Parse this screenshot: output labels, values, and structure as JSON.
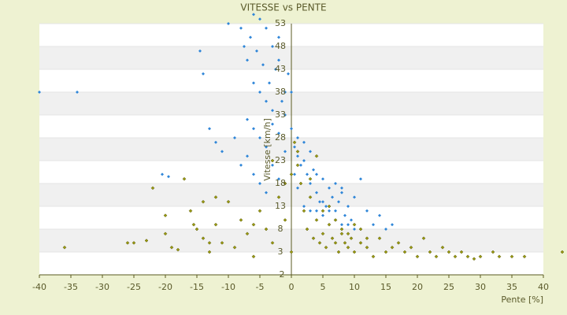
{
  "chart_data": {
    "type": "scatter",
    "title": "VITESSE vs PENTE",
    "x_label": "Pente [%]",
    "y_label": "Vitesse [km/h]",
    "xlim": [
      -40,
      40
    ],
    "ylim": [
      -2,
      53
    ],
    "xticks": [
      -40,
      -35,
      -30,
      -25,
      -20,
      -15,
      -10,
      -5,
      0,
      5,
      10,
      15,
      20,
      25,
      30,
      35,
      40
    ],
    "yticks": [
      -2,
      3,
      8,
      13,
      18,
      23,
      28,
      33,
      38,
      43,
      48,
      53
    ],
    "grid": true,
    "series": [
      {
        "color": "#2f86d8",
        "x": [
          -40,
          -34,
          -14.5,
          -14,
          -13,
          -12,
          -20.5,
          -19.5,
          -10,
          -11,
          -9,
          -8,
          -7.5,
          -7,
          -6.5,
          -6,
          -5.5,
          -5,
          -4.5,
          -4,
          -3.5,
          -3,
          -2.5,
          -2,
          -1.5,
          -1,
          -0.5,
          -6,
          -5,
          -4,
          -3,
          -7,
          -6,
          -5,
          -4,
          -3,
          -2,
          -1,
          -8,
          -7,
          -6,
          -5,
          -4,
          -3,
          -2,
          0,
          0.5,
          1,
          1.5,
          2,
          2.5,
          3,
          3.5,
          4,
          4.5,
          5,
          5.5,
          6,
          6.5,
          7,
          7.5,
          8,
          8.5,
          9,
          9.5,
          10,
          11,
          12,
          13,
          14,
          15,
          16,
          1,
          2,
          3,
          4,
          5,
          6,
          7,
          8,
          9,
          10,
          2,
          3,
          4,
          5,
          6,
          7,
          8,
          -2,
          -1,
          0,
          1,
          0.5
        ],
        "values": [
          38,
          38,
          47,
          42,
          30,
          27,
          20,
          19.5,
          53,
          25,
          28,
          52,
          48,
          45,
          50,
          55,
          47,
          54,
          44,
          52,
          40,
          48,
          43,
          50,
          36,
          38,
          42,
          40,
          38,
          36,
          34,
          32,
          30,
          28,
          26,
          31,
          29,
          33,
          22,
          24,
          20,
          18,
          16,
          22,
          19,
          30,
          26,
          24,
          22,
          27,
          20,
          18,
          21,
          16,
          14,
          19,
          13,
          17,
          15,
          12,
          14,
          16,
          11,
          13,
          10,
          15,
          19,
          12,
          9,
          11,
          8,
          9,
          17,
          13,
          12,
          12,
          11,
          12,
          10,
          9,
          9,
          8,
          23,
          25,
          20,
          14,
          13,
          18,
          17,
          45,
          25,
          38,
          28,
          20
        ]
      },
      {
        "color": "#9a9a10",
        "x": [
          -36,
          -26,
          -25,
          -23,
          -20,
          -19,
          -18,
          -16,
          -15,
          -14,
          -13,
          -12,
          -11,
          -10,
          -9,
          -8,
          -7,
          -6,
          -5,
          -4,
          -3,
          -2,
          -1,
          0,
          0,
          0.5,
          1,
          1.5,
          2,
          2.5,
          3,
          3.5,
          4,
          4.5,
          5,
          5.5,
          6,
          6.5,
          7,
          7.5,
          8,
          8.5,
          9,
          9.5,
          10,
          11,
          12,
          13,
          14,
          15,
          16,
          17,
          18,
          19,
          20,
          21,
          22,
          23,
          24,
          25,
          26,
          27,
          28,
          29,
          30,
          32,
          33,
          35,
          37,
          43,
          -17,
          -15.5,
          -14,
          -12,
          -3,
          -1,
          1,
          3,
          4,
          5,
          6,
          7,
          8,
          9,
          10,
          11,
          12,
          -20,
          -22,
          -13,
          -6
        ],
        "values": [
          4,
          5,
          5,
          5.5,
          7,
          4,
          3.5,
          12,
          8,
          6,
          3,
          9,
          5,
          14,
          4,
          10,
          7,
          2,
          12,
          8,
          5,
          15,
          10,
          3,
          20,
          27,
          25,
          18,
          12,
          8,
          15,
          6,
          10,
          5,
          7,
          4,
          9,
          6,
          5,
          3,
          7,
          5,
          4,
          6,
          3,
          5,
          4,
          2,
          6,
          3,
          4,
          5,
          3,
          4,
          2,
          6,
          3,
          2,
          4,
          3,
          2,
          3,
          2,
          1.5,
          2,
          3,
          2,
          2,
          2,
          3,
          19,
          9,
          14,
          15,
          23,
          18,
          22,
          19,
          24,
          12,
          13,
          10,
          8,
          7,
          9,
          8,
          6,
          11,
          17,
          5,
          9
        ]
      }
    ]
  }
}
